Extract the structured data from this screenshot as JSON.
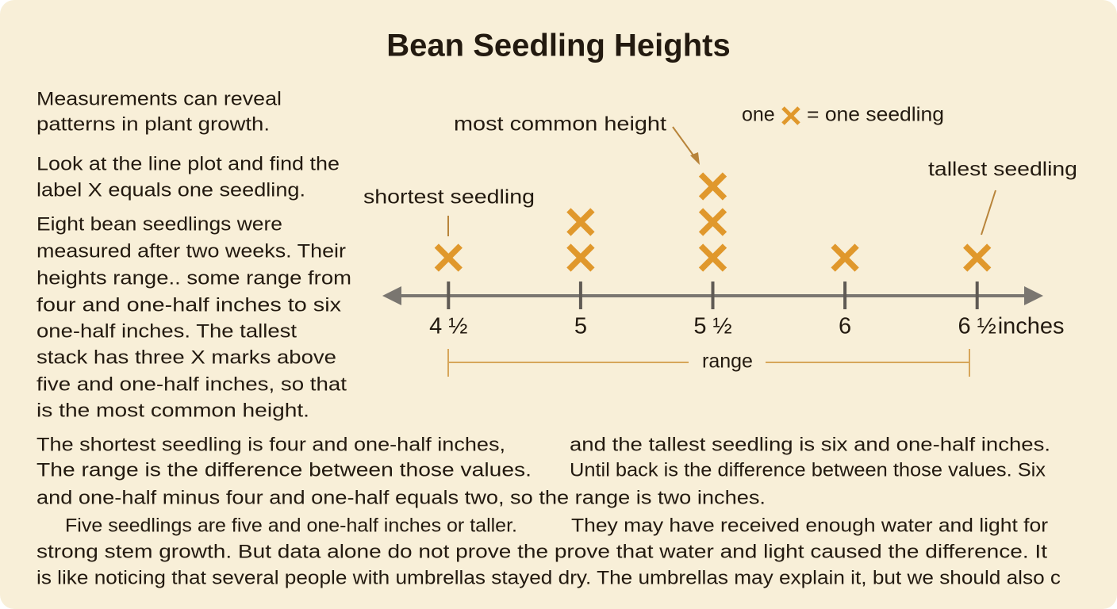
{
  "title": "Bean Seedling Heights",
  "intro_lines": [
    [
      "Measurements can reveal",
      "patterns in plant growth."
    ],
    [
      "Look at the line plot and find the",
      "label X equals one seedling."
    ],
    [
      "Eight bean seedlings were",
      "measured after two weeks. Their",
      "heights range.. some range from",
      "four and one-half inches to six",
      "one-half inches. The tallest",
      "stack has three X marks above",
      "five and one-half inches, so that",
      "is the most common height."
    ]
  ],
  "body_lines": [
    "The shortest seedling is four and one-half inches,",
    "and the tallest seedling is six and one-half inches.",
    "The range is the difference between those values.",
    "Until back is the difference between those values. Six",
    "and one-half minus four and one-half equals two, so the range is two inches.",
    "Five seedlings are five and one-half inches or taller.",
    "They may have received enough water and light for",
    "strong stem growth. But data alone do not prove the prove that water and light caused the difference. It",
    "is like noticing that several people with umbrellas stayed dry. The umbrellas may explain it, but we should also c"
  ],
  "chart_data": {
    "type": "dot",
    "x": [
      4.5,
      5,
      5.5,
      6,
      6.5
    ],
    "values": [
      1,
      2,
      3,
      1,
      1
    ],
    "color": "#e0982c",
    "xlim": [
      4.25,
      6.75
    ],
    "xticks": [
      {
        "value": 4.5,
        "label": "4 ½"
      },
      5,
      {
        "value": 5.5,
        "label": "5 ½"
      },
      6,
      {
        "value": 6.5,
        "label": "6 ½"
      }
    ],
    "x_label": "inches",
    "legend_prefix": "one",
    "legend_suffix": "= one seedling",
    "annotations": {
      "mode": "most common height",
      "min": "shortest seedling",
      "max": "tallest seedling",
      "range": "range"
    }
  }
}
